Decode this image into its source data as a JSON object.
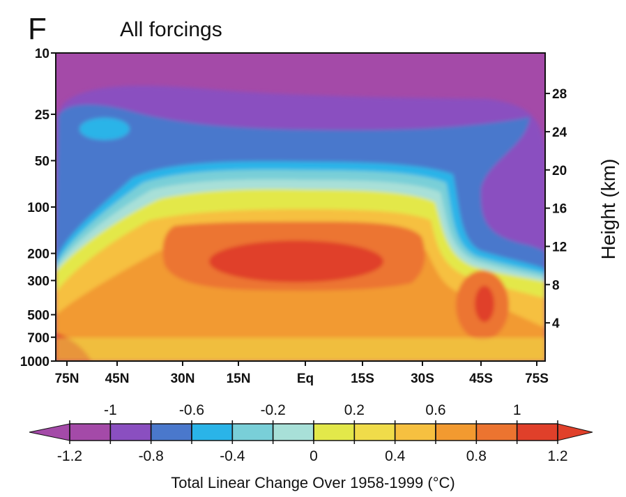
{
  "panel_letter": "F",
  "colors": {
    "levels": [
      "#a44aa8",
      "#8a4fc0",
      "#4a78cc",
      "#2ab4e8",
      "#79cfd8",
      "#a8e0d8",
      "#e3e84a",
      "#f0dc4a",
      "#f6c040",
      "#f29a30",
      "#ec7430",
      "#e0402a"
    ],
    "axis": "#111111"
  },
  "chart_data": {
    "type": "heatmap",
    "title": "All forcings",
    "xlabel": "",
    "ylabel": "",
    "y2label": "Height (km)",
    "x_ticks": [
      "75N",
      "45N",
      "30N",
      "15N",
      "Eq",
      "15S",
      "30S",
      "45S",
      "75S"
    ],
    "y_ticks_pressure": [
      "10",
      "25",
      "50",
      "100",
      "200",
      "300",
      "500",
      "700",
      "1000"
    ],
    "y_ticks_height": [
      "28",
      "24",
      "20",
      "16",
      "12",
      "8",
      "4"
    ],
    "ylim_pressure": [
      1000,
      10
    ],
    "y_scale": "log",
    "colorbar": {
      "title": "Total Linear Change Over 1958-1999 (°C)",
      "top_labels": [
        "-1",
        "-0.6",
        "-0.2",
        "0.2",
        "0.6",
        "1"
      ],
      "bottom_labels": [
        "-1.2",
        "-0.8",
        "-0.4",
        "0",
        "0.4",
        "0.8",
        "1.2"
      ],
      "boundaries": [
        -1.2,
        -1.0,
        -0.8,
        -0.6,
        -0.4,
        -0.2,
        0,
        0.2,
        0.4,
        0.6,
        0.8,
        1.0,
        1.2
      ],
      "extend": "both"
    },
    "grid": false,
    "description_regions": [
      {
        "region": "stratosphere 10-100 hPa all latitudes",
        "value_range": [
          -1.2,
          -1.0
        ]
      },
      {
        "region": "northern stratosphere near 25-50 hPa, 75N-45N",
        "value_range": [
          -0.8,
          -0.6
        ]
      },
      {
        "region": "tropical upper troposphere 200-300 hPa, 20N-20S",
        "value_range": [
          1.0,
          1.2
        ]
      },
      {
        "region": "troposphere 300-700 hPa, 45N-30S",
        "value_range": [
          0.6,
          1.0
        ]
      },
      {
        "region": "southern mid-latitudes near 45S, 400-700 hPa",
        "value_range": [
          0.8,
          1.2
        ]
      },
      {
        "region": "lower troposphere near surface",
        "value_range": [
          0.2,
          0.6
        ]
      }
    ]
  }
}
